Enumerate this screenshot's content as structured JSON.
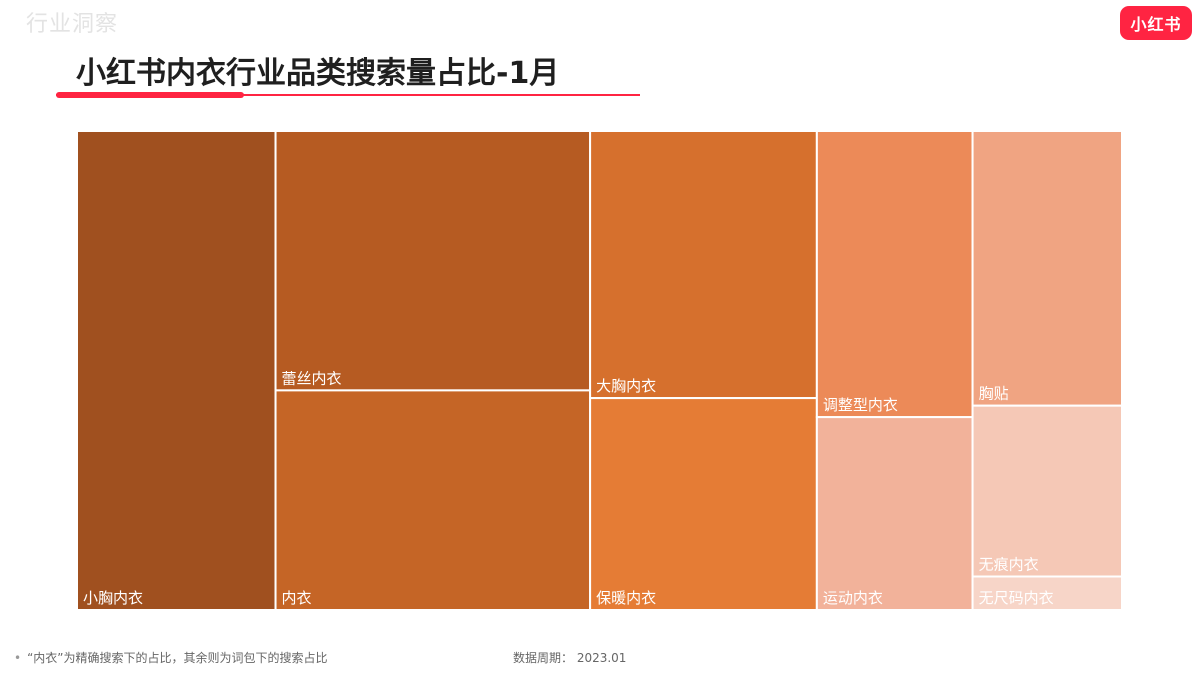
{
  "watermark": "行业洞察",
  "logo": "小红书",
  "title": "小红书内衣行业品类搜索量占比-1月",
  "footnote": "“内衣”为精确搜索下的占比，其余则为词包下的搜索占比",
  "source": "数据周期：  2023.01",
  "chart_data": {
    "type": "treemap",
    "title": "小红书内衣行业品类搜索量占比-1月",
    "value_unit": "share of search volume (%)",
    "items": [
      {
        "label": "小胸内衣",
        "value": 19.0,
        "color": "#a0501f"
      },
      {
        "label": "蕾丝内衣",
        "value": 16.3,
        "color": "#b65b22"
      },
      {
        "label": "内衣",
        "value": 13.8,
        "color": "#c56526"
      },
      {
        "label": "大胸内衣",
        "value": 12.1,
        "color": "#d6702d"
      },
      {
        "label": "保暖内衣",
        "value": 9.6,
        "color": "#e57c35"
      },
      {
        "label": "调整型内衣",
        "value": 8.9,
        "color": "#ec8a58"
      },
      {
        "label": "运动内衣",
        "value": 6.0,
        "color": "#f2b29a"
      },
      {
        "label": "胸贴",
        "value": 8.2,
        "color": "#f0a482"
      },
      {
        "label": "无痕内衣",
        "value": 5.1,
        "color": "#f5c8b6"
      },
      {
        "label": "无尺码内衣",
        "value": 1.0,
        "color": "#f7d5c8"
      }
    ]
  }
}
